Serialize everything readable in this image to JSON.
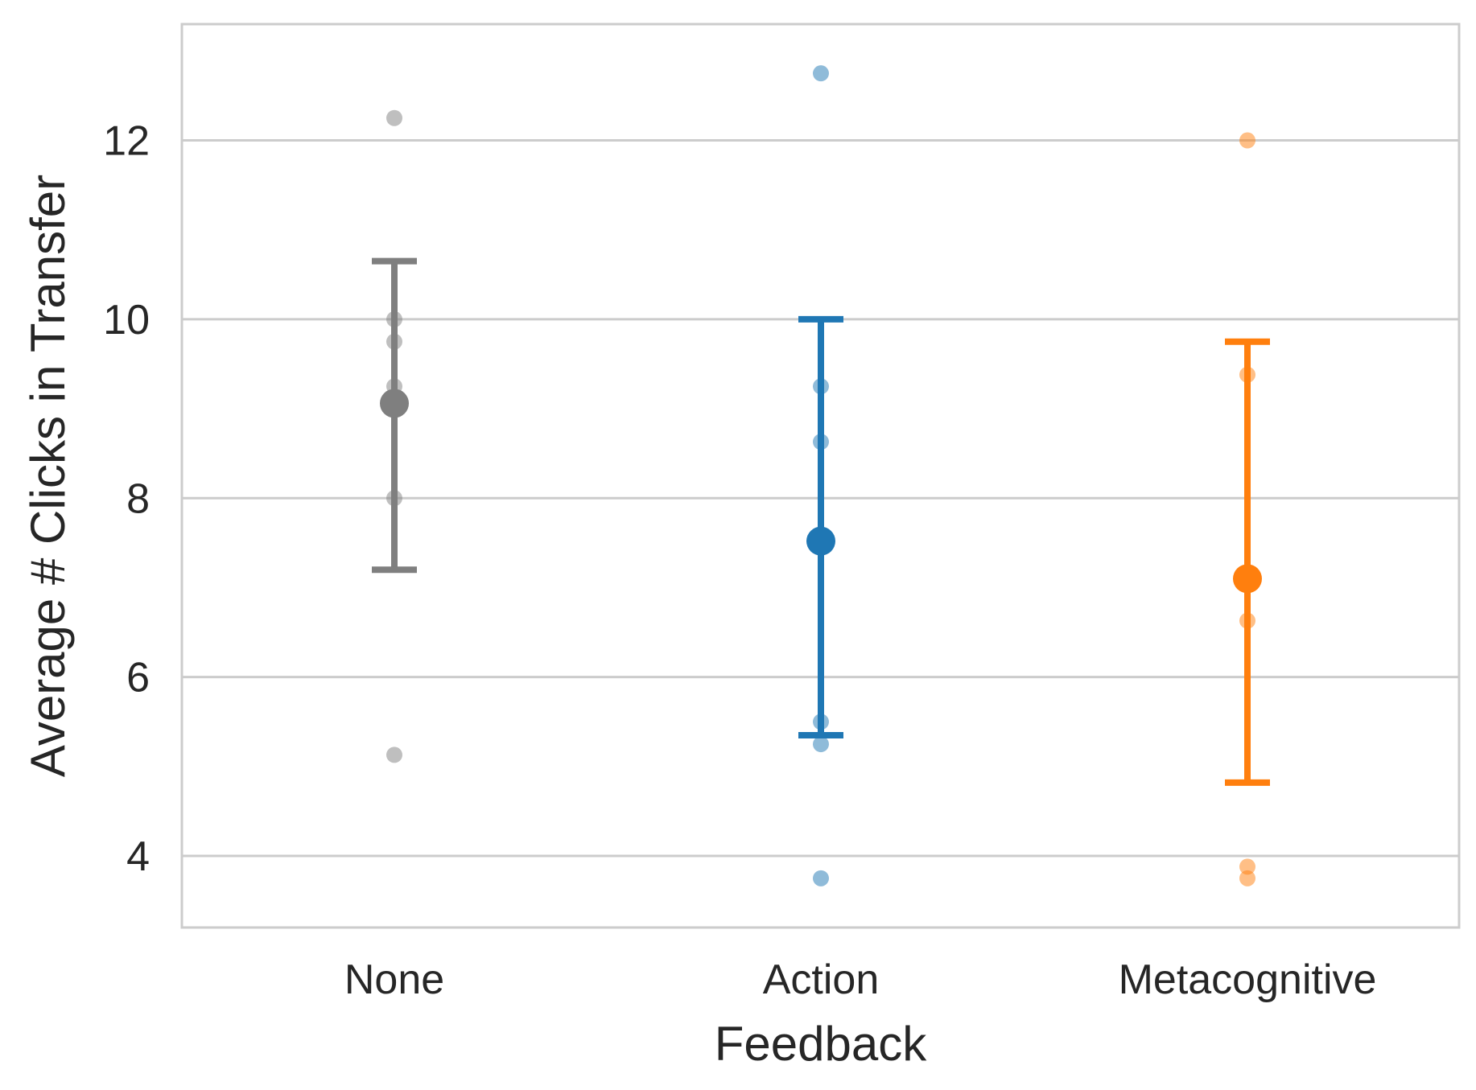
{
  "chart_data": {
    "type": "scatter",
    "subtype": "point-plot-with-error-bars-and-strip-points",
    "xlabel": "Feedback",
    "ylabel": "Average # Clicks in Transfer",
    "categories": [
      "None",
      "Action",
      "Metacognitive"
    ],
    "ylim": [
      3.2,
      13.3
    ],
    "yticks": [
      4,
      6,
      8,
      10,
      12
    ],
    "ytick_labels": [
      "4",
      "6",
      "8",
      "10",
      "12"
    ],
    "grid": "horizontal",
    "legend": "none",
    "series": [
      {
        "category": "None",
        "color": "#7f7f7f",
        "mean": 9.06,
        "ci_low": 7.2,
        "ci_high": 10.65,
        "points": [
          12.25,
          10.0,
          9.75,
          9.25,
          8.0,
          5.13
        ]
      },
      {
        "category": "Action",
        "color": "#1f77b4",
        "mean": 7.52,
        "ci_low": 5.35,
        "ci_high": 10.0,
        "points": [
          12.75,
          9.25,
          8.63,
          5.5,
          5.25,
          3.75
        ]
      },
      {
        "category": "Metacognitive",
        "color": "#ff7f0e",
        "mean": 7.1,
        "ci_low": 4.82,
        "ci_high": 9.75,
        "points": [
          12.0,
          9.38,
          6.63,
          3.88,
          3.75
        ]
      }
    ]
  }
}
